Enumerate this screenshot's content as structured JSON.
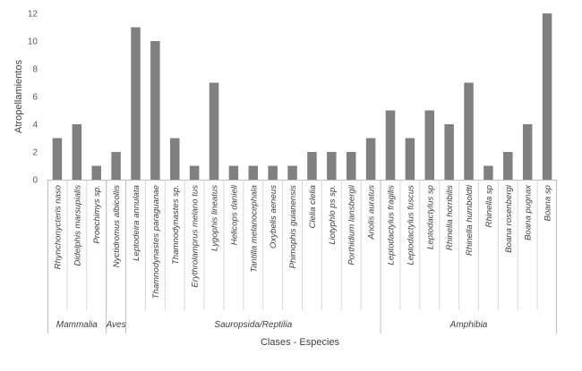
{
  "chart_data": {
    "type": "bar",
    "ylabel": "Atropellamientos",
    "xlabel": "Clases - Especies",
    "ylim": [
      0,
      12
    ],
    "yticks": [
      0,
      2,
      4,
      6,
      8,
      10,
      12
    ],
    "grid": false,
    "bar_color": "#808080",
    "categories": [
      "Rhynchonycteris naso",
      "Didelphis marsupialis",
      "Proechimys sp.",
      "Nyctidromus albicollis",
      "Leptodeira annulata",
      "Thamnodynastes paraguanae",
      "Thamnodynastes sp.",
      "Erythrolamprus melano tus",
      "Lygophis lineatus",
      "Helicops danieli",
      "Tantilla melanocephala",
      "Oxybelis aeneus",
      "Phimophis guianensis",
      "Clelia clelia",
      "Liotyphlo ps sp.",
      "Porthidium lansbergii",
      "Anolis auratus",
      "Leptodactylus fragilis",
      "Leptodactylus fuscus",
      "Leptodactylus sp",
      "Rhinella horribilis",
      "Rhinella humboldti",
      "Rhinella sp",
      "Boana rosenbergi",
      "Boana pugnax",
      "Boana sp"
    ],
    "values": [
      3,
      4,
      1,
      2,
      11,
      10,
      3,
      1,
      7,
      1,
      1,
      1,
      1,
      2,
      2,
      2,
      3,
      5,
      3,
      5,
      4,
      7,
      1,
      2,
      4,
      12
    ],
    "groups": [
      {
        "name": "Mammalia",
        "start": 0,
        "end": 2
      },
      {
        "name": "Aves",
        "start": 3,
        "end": 3
      },
      {
        "name": "Sauropsida/Reptilia",
        "start": 4,
        "end": 16
      },
      {
        "name": "Amphibia",
        "start": 17,
        "end": 25
      }
    ]
  }
}
